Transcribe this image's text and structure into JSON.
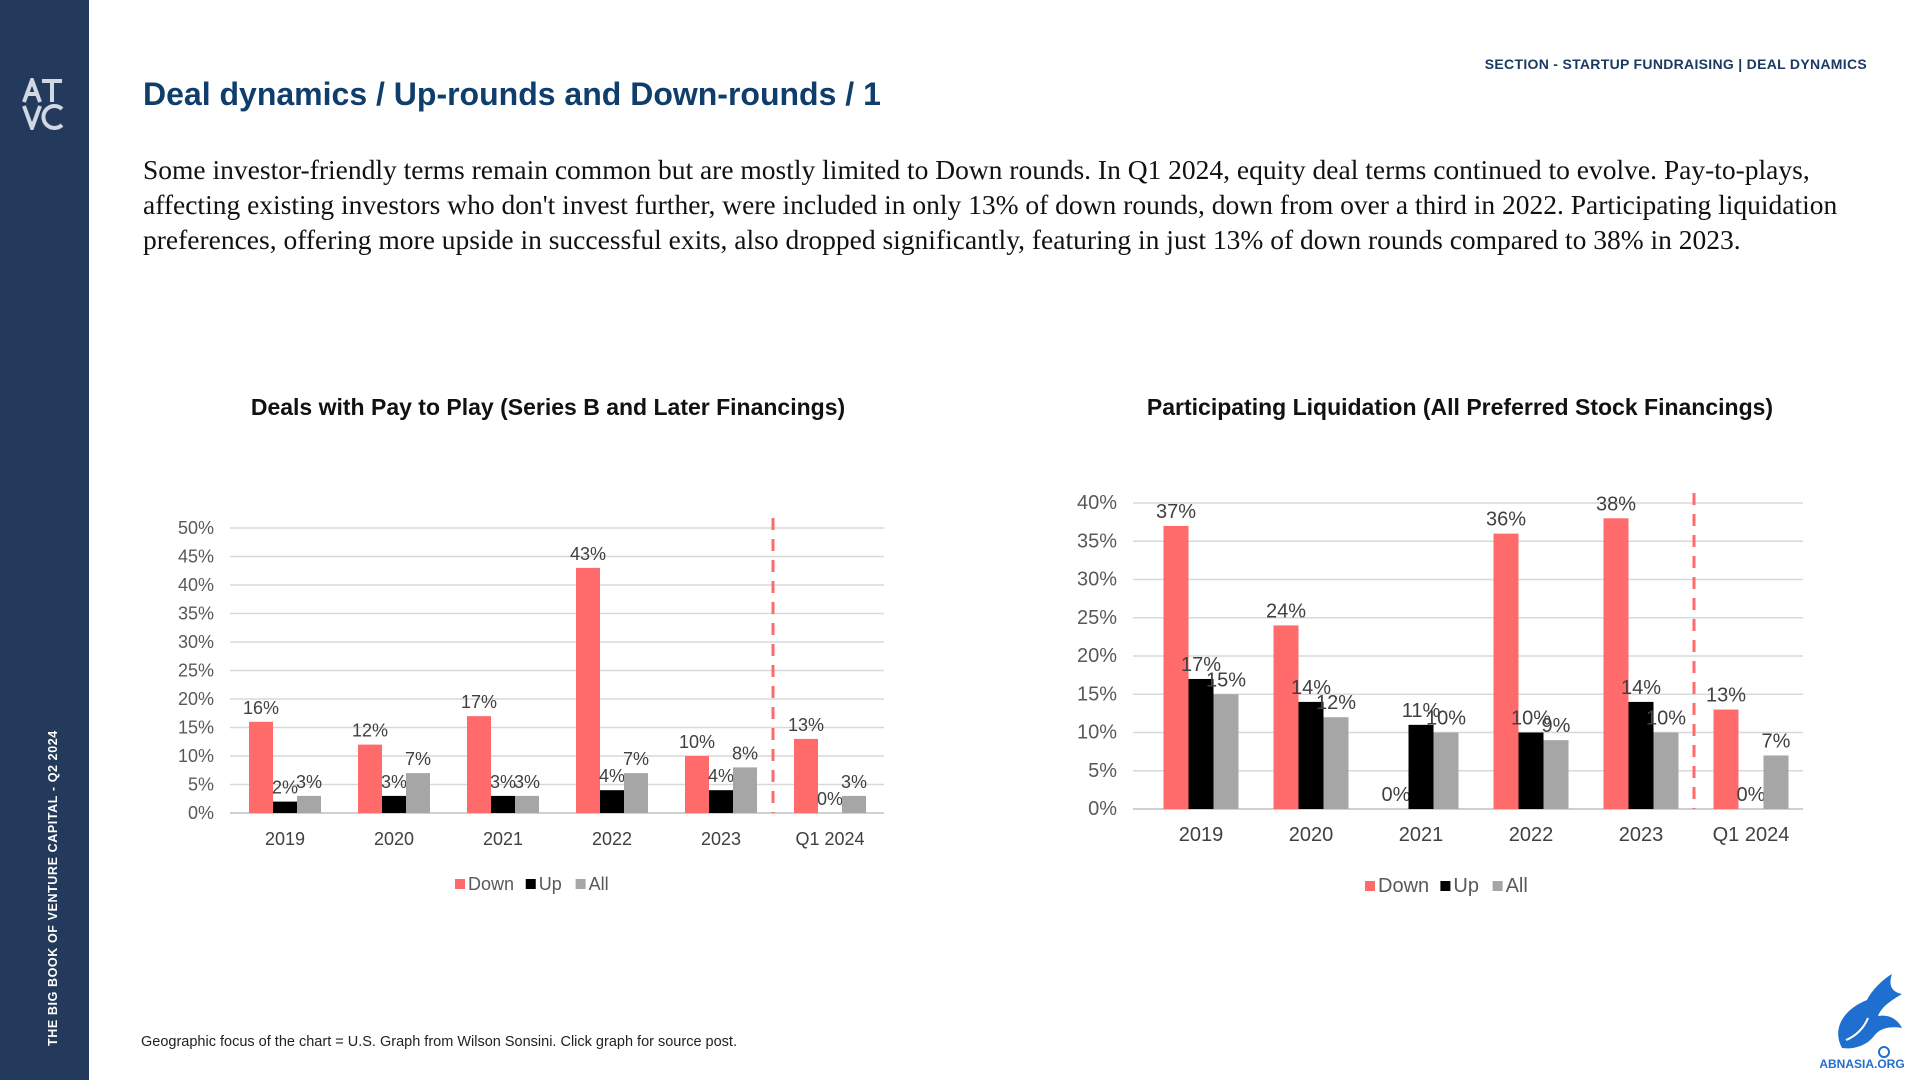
{
  "sidebar": {
    "logo_text": "ATVC",
    "vertical_text": "THE BIG BOOK OF VENTURE CAPITAL - Q2 2024"
  },
  "header": {
    "section_label": "SECTION - STARTUP FUNDRAISING | DEAL DYNAMICS",
    "title": "Deal dynamics / Up-rounds and Down-rounds / 1"
  },
  "intro_text": "Some investor-friendly terms remain common but are mostly limited to Down rounds. In Q1 2024, equity deal terms continued to evolve. Pay-to-plays, affecting existing investors who don't invest further, were included in only 13% of down rounds, down from over a third in 2022. Participating liquidation preferences, offering more upside in successful exits, also dropped significantly, featuring in just 13% of down rounds compared to 38% in 2023.",
  "footnote": "Geographic focus of the chart = U.S. Graph from Wilson Sonsini. Click graph for source post.",
  "watermark_text": "ABNASIA.ORG",
  "colors": {
    "sidebar": "#243a5c",
    "title": "#0f3e6d",
    "down": "#ff6b6b",
    "up": "#000000",
    "all": "#a6a6a6",
    "divider": "#ff6b6b"
  },
  "chart_data": [
    {
      "type": "bar",
      "title": "Deals with Pay to Play (Series B and Later Financings)",
      "categories": [
        "2019",
        "2020",
        "2021",
        "2022",
        "2023",
        "Q1 2024"
      ],
      "series": [
        {
          "name": "Down",
          "values": [
            16,
            12,
            17,
            43,
            10,
            13
          ],
          "labels": [
            "16%",
            "12%",
            "17%",
            "43%",
            "10%",
            "13%"
          ]
        },
        {
          "name": "Up",
          "values": [
            2,
            3,
            3,
            4,
            4,
            0
          ],
          "labels": [
            "2%",
            "3%",
            "3%",
            "4%",
            "4%",
            "0%"
          ]
        },
        {
          "name": "All",
          "values": [
            3,
            7,
            3,
            7,
            8,
            3
          ],
          "labels": [
            "3%",
            "7%",
            "3%",
            "7%",
            "8%",
            "3%"
          ]
        }
      ],
      "ylim": [
        0,
        50
      ],
      "yticks": [
        "0%",
        "5%",
        "10%",
        "15%",
        "20%",
        "25%",
        "30%",
        "35%",
        "40%",
        "45%",
        "50%"
      ],
      "grid": true,
      "legend": "bottom"
    },
    {
      "type": "bar",
      "title": "Participating Liquidation (All Preferred Stock Financings)",
      "categories": [
        "2019",
        "2020",
        "2021",
        "2022",
        "2023",
        "Q1 2024"
      ],
      "series": [
        {
          "name": "Down",
          "values": [
            37,
            24,
            0,
            36,
            38,
            13
          ],
          "labels": [
            "37%",
            "24%",
            "0%",
            "36%",
            "38%",
            "13%"
          ]
        },
        {
          "name": "Up",
          "values": [
            17,
            14,
            11,
            10,
            14,
            0
          ],
          "labels": [
            "17%",
            "14%",
            "11%",
            "10%",
            "14%",
            "0%"
          ]
        },
        {
          "name": "All",
          "values": [
            15,
            12,
            10,
            9,
            10,
            7
          ],
          "labels": [
            "15%",
            "12%",
            "10%",
            "9%",
            "10%",
            "7%"
          ]
        }
      ],
      "ylim": [
        0,
        40
      ],
      "yticks": [
        "0%",
        "5%",
        "10%",
        "15%",
        "20%",
        "25%",
        "30%",
        "35%",
        "40%"
      ],
      "grid": true,
      "legend": "bottom"
    }
  ]
}
